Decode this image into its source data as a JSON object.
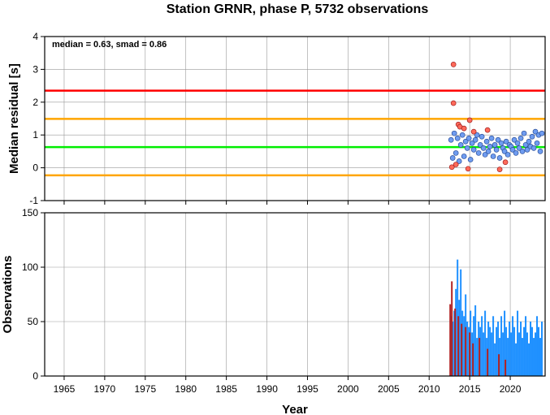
{
  "chart_data": [
    {
      "type": "scatter",
      "title": "Station GRNR, phase P, 5732 observations",
      "ylabel": "Median residual [s]",
      "annotation": "median = 0.63, smad = 0.86",
      "xlim": [
        1962.6,
        2024.3
      ],
      "xticks": [
        1965,
        1970,
        1975,
        1980,
        1985,
        1990,
        1995,
        2000,
        2005,
        2010,
        2015,
        2020
      ],
      "ylim": [
        -1,
        4
      ],
      "yticks": [
        -1,
        0,
        1,
        2,
        3,
        4
      ],
      "grid": true,
      "hlines": [
        {
          "value": 2.35,
          "color": "#ff0000"
        },
        {
          "value": 1.49,
          "color": "#ffa500"
        },
        {
          "value": 0.63,
          "color": "#00ee00"
        },
        {
          "value": -0.23,
          "color": "#ffa500"
        }
      ],
      "series": [
        {
          "color": "#6f9cf0",
          "edgecolor": "#2a4f9a",
          "x": [
            2012.7,
            2012.9,
            2013.1,
            2013.3,
            2013.5,
            2013.7,
            2013.9,
            2014.1,
            2014.3,
            2014.5,
            2014.7,
            2014.9,
            2015.1,
            2015.3,
            2015.5,
            2015.7,
            2015.9,
            2016.1,
            2016.3,
            2016.5,
            2016.7,
            2016.9,
            2017.1,
            2017.3,
            2017.5,
            2017.7,
            2017.9,
            2018.1,
            2018.3,
            2018.5,
            2018.7,
            2018.9,
            2019.1,
            2019.3,
            2019.5,
            2019.7,
            2019.9,
            2020.1,
            2020.3,
            2020.5,
            2020.7,
            2020.9,
            2021.1,
            2021.3,
            2021.5,
            2021.7,
            2021.9,
            2022.1,
            2022.3,
            2022.5,
            2022.7,
            2022.9,
            2023.1,
            2023.3,
            2023.5,
            2023.7,
            2023.9
          ],
          "values": [
            0.85,
            0.3,
            1.05,
            0.45,
            0.9,
            0.2,
            0.7,
            1.0,
            0.35,
            0.8,
            0.6,
            0.9,
            0.25,
            0.75,
            0.55,
            0.85,
            1.0,
            0.45,
            0.7,
            0.95,
            0.6,
            0.4,
            0.8,
            0.5,
            0.65,
            0.9,
            0.35,
            0.7,
            0.55,
            0.85,
            0.3,
            0.75,
            0.6,
            0.5,
            0.8,
            0.4,
            0.7,
            0.65,
            0.55,
            0.85,
            0.45,
            0.75,
            0.6,
            0.9,
            0.5,
            1.05,
            0.7,
            0.55,
            0.8,
            0.65,
            0.95,
            0.6,
            1.1,
            0.75,
            1.0,
            0.5,
            1.05
          ]
        },
        {
          "color": "#ff6a5a",
          "edgecolor": "#a02020",
          "x": [
            2013.0,
            2013.0,
            2013.6,
            2013.8,
            2014.3,
            2015.0,
            2015.5,
            2017.2,
            2013.3,
            2012.8,
            2014.8,
            2018.7,
            2019.4
          ],
          "values": [
            3.15,
            1.97,
            1.32,
            1.25,
            1.2,
            1.45,
            1.1,
            1.15,
            0.1,
            0.02,
            -0.03,
            -0.05,
            0.17
          ]
        }
      ]
    },
    {
      "type": "bar",
      "xlabel": "Year",
      "ylabel": "Observations",
      "xlim": [
        1962.6,
        2024.3
      ],
      "xticks": [
        1965,
        1970,
        1975,
        1980,
        1985,
        1990,
        1995,
        2000,
        2005,
        2010,
        2015,
        2020
      ],
      "ylim": [
        0,
        150
      ],
      "yticks": [
        0,
        50,
        100,
        150
      ],
      "grid": true,
      "series": [
        {
          "color": "#1e90ff",
          "x": [
            2012.7,
            2012.9,
            2013.1,
            2013.3,
            2013.5,
            2013.7,
            2013.9,
            2014.1,
            2014.3,
            2014.5,
            2014.7,
            2014.9,
            2015.1,
            2015.3,
            2015.5,
            2015.7,
            2015.9,
            2016.1,
            2016.3,
            2016.5,
            2016.7,
            2016.9,
            2017.1,
            2017.3,
            2017.5,
            2017.7,
            2017.9,
            2018.1,
            2018.3,
            2018.5,
            2018.7,
            2018.9,
            2019.1,
            2019.3,
            2019.5,
            2019.7,
            2019.9,
            2020.1,
            2020.3,
            2020.5,
            2020.7,
            2020.9,
            2021.1,
            2021.3,
            2021.5,
            2021.7,
            2021.9,
            2022.1,
            2022.3,
            2022.5,
            2022.7,
            2022.9,
            2023.1,
            2023.3,
            2023.5,
            2023.7,
            2023.9
          ],
          "values": [
            55,
            50,
            60,
            80,
            107,
            70,
            98,
            60,
            55,
            75,
            50,
            45,
            60,
            40,
            55,
            65,
            35,
            50,
            45,
            55,
            40,
            60,
            35,
            50,
            45,
            40,
            55,
            30,
            45,
            50,
            35,
            55,
            40,
            60,
            45,
            35,
            50,
            40,
            55,
            45,
            30,
            60,
            40,
            50,
            35,
            45,
            55,
            40,
            30,
            50,
            45,
            35,
            40,
            55,
            45,
            35,
            50
          ]
        },
        {
          "color": "#b22222",
          "x": [
            2012.6,
            2012.8,
            2013.2,
            2013.6,
            2014.0,
            2014.5,
            2015.0,
            2015.4,
            2016.2,
            2017.2,
            2018.6,
            2019.4
          ],
          "values": [
            66,
            87,
            62,
            55,
            48,
            45,
            40,
            30,
            35,
            25,
            20,
            15
          ]
        }
      ]
    }
  ]
}
